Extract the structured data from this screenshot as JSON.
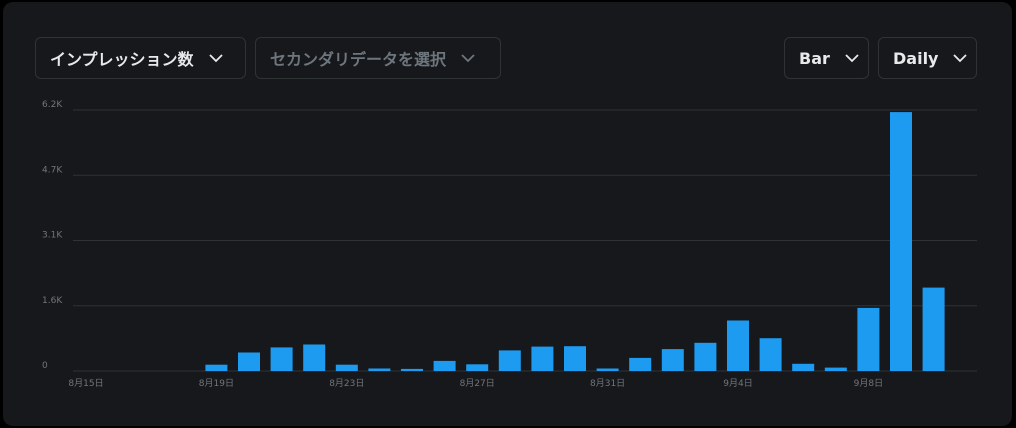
{
  "controls": {
    "metric_label": "インプレッション数",
    "secondary_placeholder": "セカンダリデータを選択",
    "chart_type_label": "Bar",
    "interval_label": "Daily"
  },
  "colors": {
    "bar": "#1d9bf0",
    "grid": "#2f3336",
    "background": "#16181c",
    "text": "#e7e9ea",
    "muted": "#71767b"
  },
  "icons": {
    "chevron": "chevron-down-icon"
  },
  "chart_data": {
    "type": "bar",
    "title": "",
    "xlabel": "",
    "ylabel": "",
    "ylim": [
      0,
      6200
    ],
    "yticks": [
      0,
      1550,
      3100,
      4650,
      6200
    ],
    "ytick_labels": [
      "0",
      "1.6K",
      "3.1K",
      "4.7K",
      "6.2K"
    ],
    "xtick_labels": [
      "8月15日",
      "8月19日",
      "8月23日",
      "8月27日",
      "8月31日",
      "9月4日",
      "9月8日"
    ],
    "xtick_indices": [
      0,
      4,
      8,
      12,
      16,
      20,
      24
    ],
    "categories": [
      "8/15",
      "8/16",
      "8/17",
      "8/18",
      "8/19",
      "8/20",
      "8/21",
      "8/22",
      "8/23",
      "8/24",
      "8/25",
      "8/26",
      "8/27",
      "8/28",
      "8/29",
      "8/30",
      "8/31",
      "9/1",
      "9/2",
      "9/3",
      "9/4",
      "9/5",
      "9/6",
      "9/7",
      "9/8",
      "9/9",
      "9/10",
      "9/11"
    ],
    "values": [
      0,
      0,
      0,
      0,
      150,
      440,
      560,
      630,
      150,
      60,
      50,
      240,
      160,
      490,
      580,
      590,
      60,
      310,
      520,
      670,
      1200,
      780,
      170,
      80,
      1500,
      6150,
      1980,
      0
    ],
    "grid": true,
    "legend": "none"
  }
}
